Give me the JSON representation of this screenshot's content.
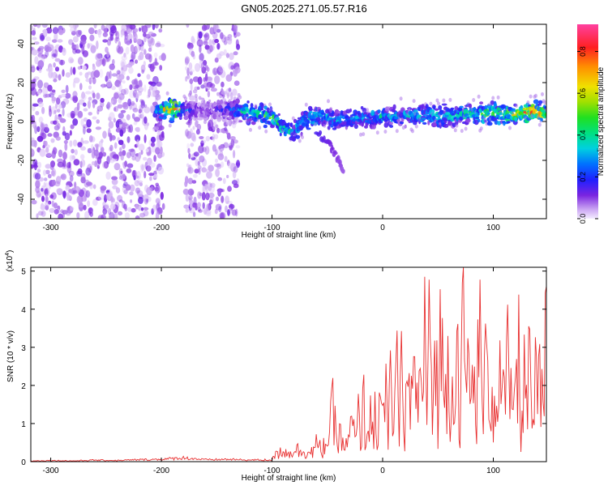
{
  "title": "GN05.2025.271.05.57.R16",
  "chart_data": [
    {
      "type": "heatmap",
      "xlabel": "Height of straight line (km)",
      "ylabel": "Frequency (Hz)",
      "xlim": [
        -318,
        148
      ],
      "ylim": [
        -50,
        50
      ],
      "x_ticks": [
        -300,
        -200,
        -100,
        0,
        100
      ],
      "y_ticks": [
        -40,
        -20,
        0,
        20,
        40
      ],
      "colorbar": {
        "label": "Normalized spectral amplitude",
        "range": [
          0,
          0.93
        ],
        "ticks": [
          "0.0",
          "0.2",
          "0.4",
          "0.6",
          "0.8"
        ],
        "tick_values": [
          0,
          0.2,
          0.4,
          0.6,
          0.8
        ]
      },
      "noise_regions": [
        {
          "x": [
            -318,
            -198
          ],
          "y": [
            -50,
            50
          ],
          "amplitude": 0.05
        },
        {
          "x": [
            -178,
            -130
          ],
          "y": [
            -50,
            50
          ],
          "amplitude": 0.05
        }
      ],
      "signal_band": [
        {
          "x": -205,
          "freq": 6,
          "amplitude": 0.25
        },
        {
          "x": -190,
          "freq": 6,
          "amplitude": 0.8
        },
        {
          "x": -178,
          "freq": 6,
          "amplitude": 0.2
        },
        {
          "x": -160,
          "freq": 6,
          "amplitude": 0.1
        },
        {
          "x": -140,
          "freq": 6,
          "amplitude": 0.2
        },
        {
          "x": -125,
          "freq": 5,
          "amplitude": 0.35
        },
        {
          "x": -110,
          "freq": 4,
          "amplitude": 0.4
        },
        {
          "x": -100,
          "freq": 2,
          "amplitude": 0.45
        },
        {
          "x": -90,
          "freq": -3,
          "amplitude": 0.4
        },
        {
          "x": -80,
          "freq": -5,
          "amplitude": 0.35
        },
        {
          "x": -70,
          "freq": 1,
          "amplitude": 0.4
        },
        {
          "x": -55,
          "freq": 3,
          "amplitude": 0.35
        },
        {
          "x": -40,
          "freq": 1,
          "amplitude": 0.3
        },
        {
          "x": -20,
          "freq": 2,
          "amplitude": 0.3
        },
        {
          "x": 0,
          "freq": 3,
          "amplitude": 0.35
        },
        {
          "x": 20,
          "freq": 3,
          "amplitude": 0.3
        },
        {
          "x": 40,
          "freq": 3,
          "amplitude": 0.35
        },
        {
          "x": 60,
          "freq": 3,
          "amplitude": 0.35
        },
        {
          "x": 80,
          "freq": 4,
          "amplitude": 0.45
        },
        {
          "x": 100,
          "freq": 4,
          "amplitude": 0.5
        },
        {
          "x": 120,
          "freq": 4,
          "amplitude": 0.6
        },
        {
          "x": 135,
          "freq": 5,
          "amplitude": 0.85
        },
        {
          "x": 148,
          "freq": 5,
          "amplitude": 0.6
        }
      ],
      "tail": [
        {
          "x": -60,
          "freq": -5,
          "amplitude": 0.15
        },
        {
          "x": -48,
          "freq": -12,
          "amplitude": 0.12
        },
        {
          "x": -40,
          "freq": -20,
          "amplitude": 0.1
        },
        {
          "x": -35,
          "freq": -27,
          "amplitude": 0.08
        }
      ]
    },
    {
      "type": "line",
      "xlabel": "Height of straight line (km)",
      "ylabel": "SNR (10 * v/v)",
      "yscale_label": "(x10",
      "yscale_exponent": "4",
      "xlim": [
        -318,
        148
      ],
      "ylim": [
        0,
        5.1
      ],
      "x_ticks": [
        -300,
        -200,
        -100,
        0,
        100
      ],
      "y_ticks": [
        0,
        1,
        2,
        3,
        4,
        5
      ],
      "color": "#e83030",
      "series": [
        {
          "x": [
            -318,
            -300,
            -280,
            -260,
            -240,
            -220,
            -200,
            -180,
            -160,
            -140,
            -120,
            -110,
            -100,
            -95,
            -90,
            -85,
            -80,
            -75,
            -70,
            -65,
            -60,
            -55,
            -50,
            -47,
            -45,
            -42,
            -40,
            -37,
            -35,
            -32,
            -30,
            -27,
            -25,
            -22,
            -20,
            -17,
            -15,
            -12,
            -10,
            -7,
            -5,
            -2,
            0,
            3,
            5,
            8,
            10,
            13,
            15,
            18,
            20,
            23,
            25,
            28,
            30,
            33,
            35,
            38,
            40,
            43,
            45,
            48,
            50,
            53,
            55,
            58,
            60,
            63,
            65,
            68,
            70,
            73,
            75,
            78,
            80,
            83,
            85,
            88,
            90,
            93,
            95,
            98,
            100,
            103,
            105,
            108,
            110,
            113,
            115,
            118,
            120,
            123,
            125,
            128,
            130,
            133,
            135,
            138,
            140,
            143,
            145,
            148
          ],
          "values": [
            0.02,
            0.03,
            0.02,
            0.04,
            0.03,
            0.05,
            0.06,
            0.1,
            0.05,
            0.06,
            0.04,
            0.05,
            0.08,
            0.3,
            0.5,
            0.25,
            0.55,
            0.35,
            0.45,
            0.3,
            0.6,
            0.4,
            0.85,
            1.3,
            1.8,
            0.9,
            1.4,
            0.6,
            0.8,
            0.4,
            1.1,
            1.3,
            0.7,
            1.5,
            1.0,
            2.1,
            0.8,
            1.7,
            1.2,
            1.9,
            0.9,
            2.4,
            1.2,
            2.2,
            1.0,
            3.2,
            1.5,
            2.8,
            1.3,
            3.6,
            1.7,
            3.3,
            1.4,
            4.0,
            1.6,
            3.9,
            2.0,
            4.6,
            1.9,
            5.0,
            1.5,
            4.3,
            2.1,
            5.1,
            1.8,
            4.4,
            2.3,
            4.8,
            1.6,
            4.5,
            2.0,
            4.9,
            2.4,
            4.1,
            1.7,
            3.8,
            2.5,
            4.5,
            1.5,
            4.2,
            2.2,
            3.7,
            1.4,
            4.0,
            2.6,
            3.5,
            1.8,
            3.9,
            1.3,
            3.3,
            2.3,
            3.6,
            1.4,
            3.1,
            1.9,
            3.4,
            1.1,
            2.7,
            2.1,
            3.0,
            1.6,
            4.6
          ]
        }
      ]
    }
  ]
}
